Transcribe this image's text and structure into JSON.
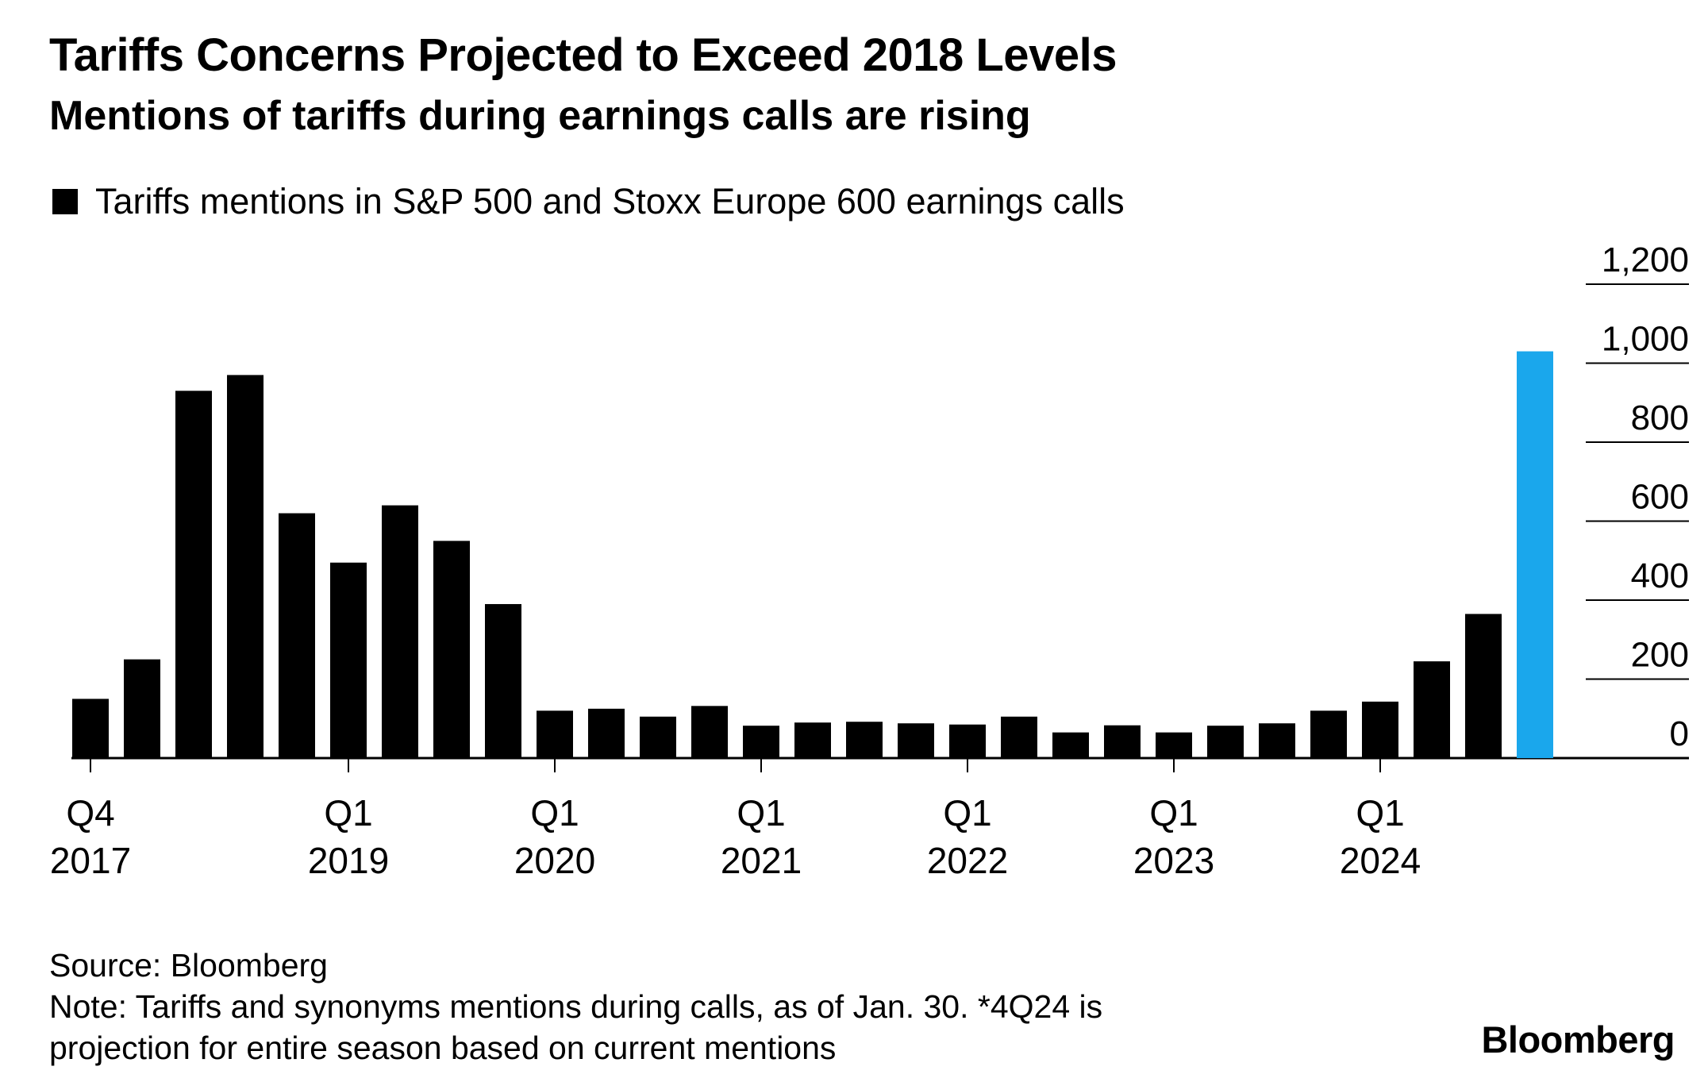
{
  "header": {
    "title": "Tariffs Concerns Projected to Exceed 2018 Levels",
    "subtitle": "Mentions of tariffs during earnings calls are rising"
  },
  "legend": {
    "label": "Tariffs mentions in S&P 500 and Stoxx Europe 600 earnings calls"
  },
  "footer": {
    "source": "Source: Bloomberg",
    "note_line1": "Note: Tariffs and synonyms mentions during calls, as of Jan. 30. *4Q24 is",
    "note_line2": "projection for entire season based on current mentions",
    "brand": "Bloomberg"
  },
  "colors": {
    "bar": "#000000",
    "highlight": "#1aa7ec",
    "gridline": "#000000"
  },
  "chart_data": {
    "type": "bar",
    "title": "Tariffs Concerns Projected to Exceed 2018 Levels",
    "subtitle": "Mentions of tariffs during earnings calls are rising",
    "categories": [
      "Q4 2017",
      "Q1 2018",
      "Q2 2018",
      "Q3 2018",
      "Q4 2018",
      "Q1 2019",
      "Q2 2019",
      "Q3 2019",
      "Q4 2019",
      "Q1 2020",
      "Q2 2020",
      "Q3 2020",
      "Q4 2020",
      "Q1 2021",
      "Q2 2021",
      "Q3 2021",
      "Q4 2021",
      "Q1 2022",
      "Q2 2022",
      "Q3 2022",
      "Q4 2022",
      "Q1 2023",
      "Q2 2023",
      "Q3 2023",
      "Q4 2023",
      "Q1 2024",
      "Q2 2024",
      "Q3 2024",
      "Q4 2024*"
    ],
    "series": [
      {
        "name": "Tariffs mentions in S&P 500 and Stoxx Europe 600 earnings calls",
        "values": [
          150,
          250,
          930,
          970,
          620,
          495,
          640,
          550,
          390,
          120,
          125,
          105,
          132,
          82,
          90,
          92,
          88,
          85,
          105,
          65,
          83,
          65,
          82,
          88,
          120,
          143,
          245,
          365,
          1030
        ]
      }
    ],
    "highlight_index": 28,
    "x_tick_labels": [
      {
        "index": 0,
        "line1": "Q4",
        "line2": "2017"
      },
      {
        "index": 5,
        "line1": "Q1",
        "line2": "2019"
      },
      {
        "index": 9,
        "line1": "Q1",
        "line2": "2020"
      },
      {
        "index": 13,
        "line1": "Q1",
        "line2": "2021"
      },
      {
        "index": 17,
        "line1": "Q1",
        "line2": "2022"
      },
      {
        "index": 21,
        "line1": "Q1",
        "line2": "2023"
      },
      {
        "index": 25,
        "line1": "Q1",
        "line2": "2024"
      }
    ],
    "y_ticks": [
      0,
      200,
      400,
      600,
      800,
      1000,
      1200
    ],
    "y_tick_labels": [
      "0",
      "200",
      "400",
      "600",
      "800",
      "1,000",
      "1,200"
    ],
    "ylim": [
      0,
      1300
    ],
    "y_axis_side": "right",
    "grid": true,
    "legend_position": "top-left"
  }
}
